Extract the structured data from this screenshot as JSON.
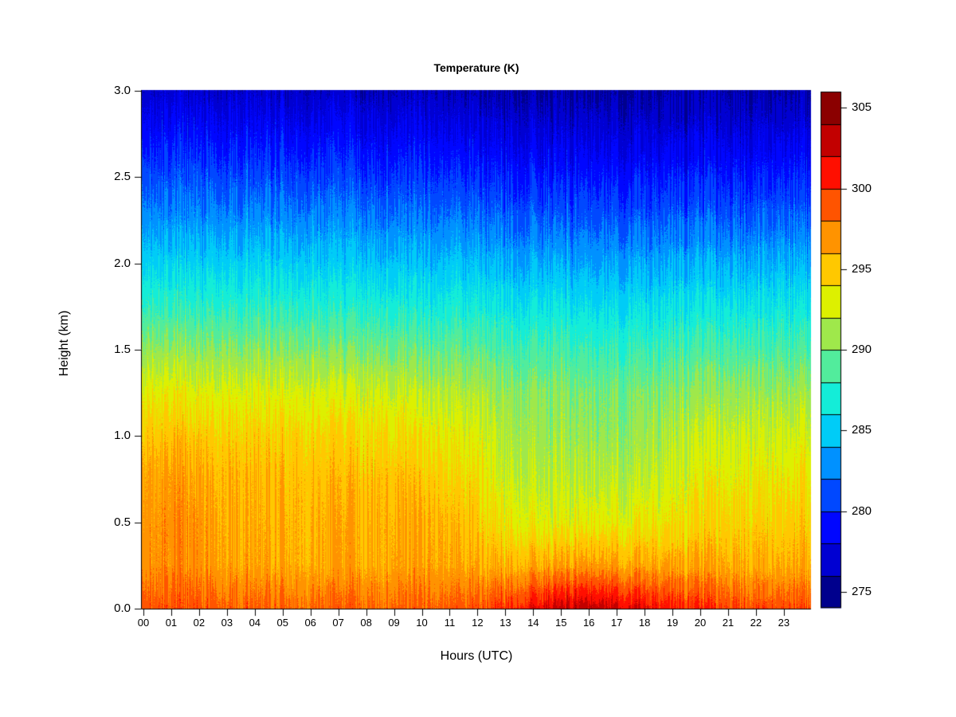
{
  "chart_data": {
    "type": "heatmap",
    "title": "Temperature (K)",
    "xlabel": "Hours (UTC)",
    "ylabel": "Height (km)",
    "xlim_hours": [
      0,
      24
    ],
    "ylim_km": [
      0.0,
      3.0
    ],
    "x_tick_labels": [
      "00",
      "01",
      "02",
      "03",
      "04",
      "05",
      "06",
      "07",
      "08",
      "09",
      "10",
      "11",
      "12",
      "13",
      "14",
      "15",
      "16",
      "17",
      "18",
      "19",
      "20",
      "21",
      "22",
      "23"
    ],
    "y_tick_values": [
      0.0,
      0.5,
      1.0,
      1.5,
      2.0,
      2.5,
      3.0
    ],
    "y_tick_labels": [
      "0.0",
      "0.5",
      "1.0",
      "1.5",
      "2.0",
      "2.5",
      "3.0"
    ],
    "x_hours": [
      0,
      1,
      2,
      3,
      4,
      5,
      6,
      7,
      8,
      9,
      10,
      11,
      12,
      13,
      14,
      15,
      16,
      17,
      18,
      19,
      20,
      21,
      22,
      23,
      24
    ],
    "y_heights_km": [
      0,
      0.25,
      0.5,
      0.75,
      1.0,
      1.25,
      1.5,
      1.75,
      2.0,
      2.25,
      2.5,
      2.75,
      3.0
    ],
    "grid_orientation": "temperature_K[hourIndex][heightIndex], heights from 0 km (surface) to 3 km",
    "temperature_K": [
      [
        299.4,
        297.4,
        297.2,
        296.6,
        295.3,
        293.4,
        290.8,
        288.0,
        285.6,
        283.3,
        281.3,
        279.3,
        277.2
      ],
      [
        299.4,
        297.4,
        297.3,
        296.7,
        295.2,
        293.3,
        290.7,
        287.9,
        285.5,
        283.2,
        281.2,
        279.2,
        277.1
      ],
      [
        299.2,
        297.1,
        297.0,
        296.4,
        295.1,
        293.2,
        290.6,
        287.8,
        285.4,
        283.1,
        281.1,
        279.1,
        277.0
      ],
      [
        298.8,
        296.6,
        296.3,
        295.9,
        294.9,
        293.1,
        290.5,
        287.7,
        285.3,
        283.0,
        281.0,
        279.0,
        277.0
      ],
      [
        298.6,
        296.3,
        296.0,
        295.7,
        294.8,
        293.0,
        290.4,
        287.7,
        285.3,
        283.0,
        280.9,
        278.9,
        276.9
      ],
      [
        298.5,
        296.2,
        295.9,
        295.6,
        294.7,
        292.9,
        290.3,
        287.6,
        285.2,
        282.9,
        280.8,
        278.8,
        276.8
      ],
      [
        298.5,
        296.1,
        295.9,
        295.5,
        294.6,
        292.8,
        290.2,
        287.5,
        285.1,
        282.8,
        280.7,
        278.7,
        276.7
      ],
      [
        298.4,
        296.1,
        295.9,
        295.4,
        294.5,
        292.7,
        290.1,
        287.4,
        285.0,
        282.7,
        280.6,
        278.6,
        276.6
      ],
      [
        298.5,
        296.3,
        296.0,
        295.5,
        294.4,
        292.6,
        290.0,
        287.3,
        284.9,
        282.6,
        280.5,
        278.5,
        276.5
      ],
      [
        298.6,
        296.4,
        296.1,
        295.4,
        294.2,
        292.4,
        289.8,
        287.2,
        284.8,
        282.5,
        280.4,
        278.4,
        276.4
      ],
      [
        298.6,
        296.4,
        296.0,
        295.0,
        293.8,
        292.0,
        289.6,
        287.0,
        284.7,
        282.4,
        280.3,
        278.3,
        276.3
      ],
      [
        298.7,
        296.2,
        295.5,
        294.5,
        293.3,
        291.6,
        289.3,
        286.8,
        284.5,
        282.2,
        280.1,
        278.1,
        276.1
      ],
      [
        299.0,
        296.0,
        294.8,
        293.8,
        292.7,
        291.2,
        289.0,
        286.6,
        284.3,
        282.0,
        279.9,
        277.9,
        275.9
      ],
      [
        300.2,
        295.8,
        293.6,
        292.4,
        291.5,
        290.7,
        288.7,
        286.4,
        284.1,
        281.8,
        279.7,
        277.7,
        275.7
      ],
      [
        301.4,
        296.0,
        293.0,
        291.8,
        290.9,
        290.3,
        288.4,
        286.2,
        283.9,
        281.6,
        279.5,
        277.5,
        275.6
      ],
      [
        302.6,
        296.4,
        293.0,
        291.7,
        290.7,
        290.0,
        288.2,
        286.0,
        283.7,
        281.4,
        279.4,
        277.4,
        275.5
      ],
      [
        302.9,
        296.6,
        293.1,
        291.7,
        290.6,
        289.9,
        288.1,
        285.9,
        283.6,
        281.3,
        279.3,
        277.3,
        275.5
      ],
      [
        302.4,
        296.4,
        293.2,
        291.7,
        290.6,
        289.9,
        288.0,
        285.8,
        283.6,
        281.3,
        279.3,
        277.3,
        275.5
      ],
      [
        301.5,
        296.2,
        293.4,
        291.9,
        290.8,
        290.0,
        288.1,
        285.9,
        283.6,
        281.3,
        279.3,
        277.3,
        275.5
      ],
      [
        300.6,
        296.2,
        293.7,
        292.6,
        291.5,
        290.2,
        288.2,
        286.0,
        283.7,
        281.4,
        279.4,
        277.4,
        275.6
      ],
      [
        300.0,
        296.1,
        294.1,
        293.0,
        291.8,
        290.4,
        288.4,
        286.1,
        283.8,
        281.5,
        279.4,
        277.4,
        275.6
      ],
      [
        299.6,
        296.0,
        294.4,
        293.3,
        292.1,
        290.6,
        288.5,
        286.2,
        283.9,
        281.5,
        279.5,
        277.5,
        275.7
      ],
      [
        299.3,
        295.9,
        294.6,
        293.5,
        292.3,
        290.8,
        288.6,
        286.3,
        283.9,
        281.6,
        279.5,
        277.5,
        275.7
      ],
      [
        299.2,
        295.9,
        294.7,
        293.7,
        292.5,
        290.9,
        288.7,
        286.3,
        284.0,
        281.6,
        279.6,
        277.6,
        275.7
      ],
      [
        299.3,
        296.0,
        294.8,
        293.8,
        292.6,
        291.0,
        288.7,
        286.4,
        284.0,
        281.7,
        279.6,
        277.6,
        275.8
      ]
    ],
    "levels_K": [
      274,
      276,
      278,
      280,
      282,
      284,
      286,
      288,
      290,
      292,
      294,
      296,
      298,
      300,
      302,
      304,
      306
    ],
    "palette": [
      "#00008D",
      "#0000D2",
      "#0006FF",
      "#0048FF",
      "#0091FF",
      "#00CCF7",
      "#14EDD8",
      "#52EC9C",
      "#9FE84B",
      "#DDF000",
      "#FFC800",
      "#FF9300",
      "#FF5400",
      "#FF0F00",
      "#C20000",
      "#8B0000"
    ],
    "colorbar_tick_values": [
      275,
      280,
      285,
      290,
      295,
      300,
      305
    ],
    "colorbar_tick_labels": [
      "275",
      "280",
      "285",
      "290",
      "295",
      "300",
      "305"
    ],
    "legend_position": "right",
    "grid": "off",
    "axis_color": "#000000",
    "text_color": "#000000",
    "texture": {
      "per_profile_noise_K": 2.4,
      "ripple_K": 1.7,
      "pixel_noise_K": 0.8
    }
  }
}
